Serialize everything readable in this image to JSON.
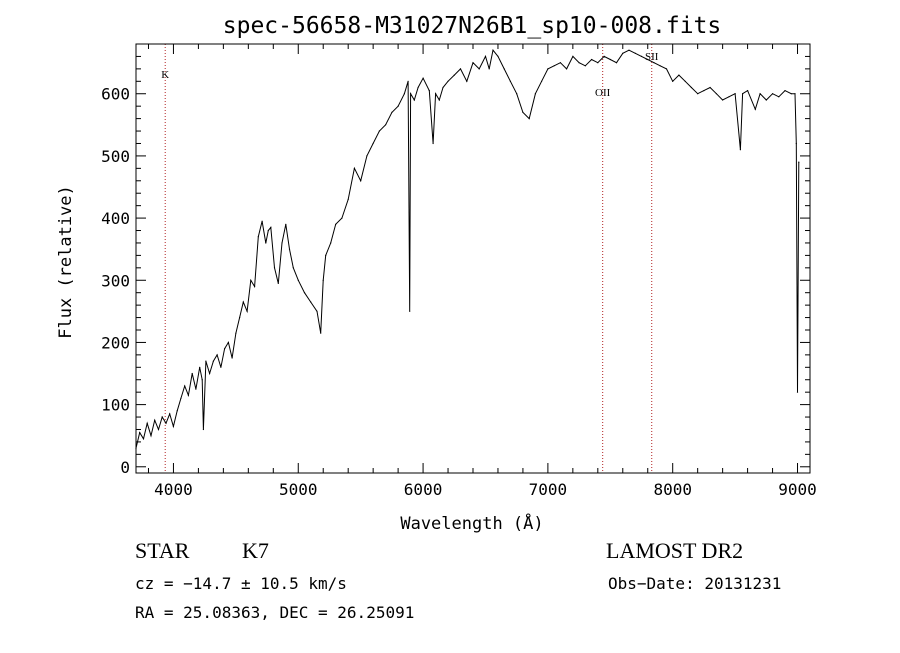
{
  "chart_data": {
    "type": "line",
    "title": "spec-56658-M31027N26B1_sp10-008.fits",
    "xlabel": "Wavelength (Å)",
    "ylabel": "Flux (relative)",
    "xlim": [
      3700,
      9100
    ],
    "ylim": [
      -10,
      680
    ],
    "x_ticks": [
      4000,
      5000,
      6000,
      7000,
      8000,
      9000
    ],
    "y_ticks": [
      0,
      100,
      200,
      300,
      400,
      500,
      600
    ],
    "grid": false,
    "series": [
      {
        "color": "#000000",
        "x": [
          3700,
          3730,
          3760,
          3790,
          3820,
          3850,
          3880,
          3910,
          3940,
          3970,
          4000,
          4030,
          4060,
          4090,
          4120,
          4150,
          4180,
          4210,
          4230,
          4240,
          4260,
          4290,
          4320,
          4350,
          4380,
          4410,
          4440,
          4470,
          4500,
          4530,
          4560,
          4590,
          4620,
          4650,
          4680,
          4710,
          4740,
          4760,
          4780,
          4810,
          4840,
          4870,
          4900,
          4930,
          4960,
          5000,
          5050,
          5100,
          5150,
          5180,
          5200,
          5220,
          5260,
          5300,
          5350,
          5400,
          5450,
          5500,
          5550,
          5600,
          5650,
          5700,
          5750,
          5800,
          5850,
          5880,
          5893,
          5900,
          5930,
          5960,
          6000,
          6050,
          6080,
          6100,
          6130,
          6160,
          6200,
          6250,
          6300,
          6350,
          6400,
          6450,
          6500,
          6530,
          6560,
          6600,
          6650,
          6700,
          6750,
          6800,
          6850,
          6900,
          6950,
          7000,
          7050,
          7100,
          7150,
          7200,
          7250,
          7300,
          7350,
          7400,
          7450,
          7500,
          7550,
          7600,
          7650,
          7700,
          7750,
          7800,
          7850,
          7900,
          7950,
          8000,
          8050,
          8100,
          8150,
          8200,
          8250,
          8300,
          8350,
          8400,
          8450,
          8500,
          8542,
          8560,
          8600,
          8662,
          8700,
          8750,
          8800,
          8850,
          8900,
          8950,
          8980,
          8990,
          9000,
          9010
        ],
        "y": [
          30,
          55,
          45,
          70,
          50,
          75,
          60,
          80,
          70,
          85,
          65,
          90,
          110,
          130,
          115,
          150,
          125,
          160,
          140,
          60,
          170,
          150,
          170,
          180,
          160,
          190,
          200,
          175,
          215,
          240,
          265,
          250,
          300,
          290,
          370,
          395,
          360,
          380,
          385,
          320,
          295,
          360,
          390,
          350,
          320,
          300,
          280,
          265,
          250,
          215,
          300,
          340,
          360,
          390,
          400,
          430,
          480,
          460,
          500,
          520,
          540,
          550,
          570,
          580,
          600,
          620,
          250,
          600,
          590,
          610,
          625,
          605,
          520,
          600,
          590,
          610,
          620,
          630,
          640,
          620,
          650,
          640,
          660,
          640,
          670,
          660,
          640,
          620,
          600,
          570,
          560,
          600,
          620,
          640,
          645,
          650,
          640,
          660,
          650,
          645,
          655,
          650,
          660,
          655,
          650,
          665,
          670,
          665,
          660,
          655,
          650,
          645,
          640,
          620,
          630,
          620,
          610,
          600,
          605,
          610,
          600,
          590,
          595,
          600,
          510,
          600,
          605,
          575,
          600,
          590,
          600,
          595,
          605,
          600,
          600,
          520,
          120,
          490
        ]
      }
    ],
    "markers": [
      {
        "label": "K",
        "x": 3934
      },
      {
        "label": "OII",
        "x": 7439
      },
      {
        "label": "SII",
        "x": 7832
      }
    ],
    "marker_color": "#b22222",
    "annotations": {
      "object_type": "STAR",
      "subclass": "K7",
      "survey": "LAMOST DR2",
      "redshift": "cz = −14.7 ± 10.5 km/s",
      "obs_date": "Obs−Date: 20131231",
      "coords": "RA =  25.08363, DEC =  26.25091"
    }
  }
}
